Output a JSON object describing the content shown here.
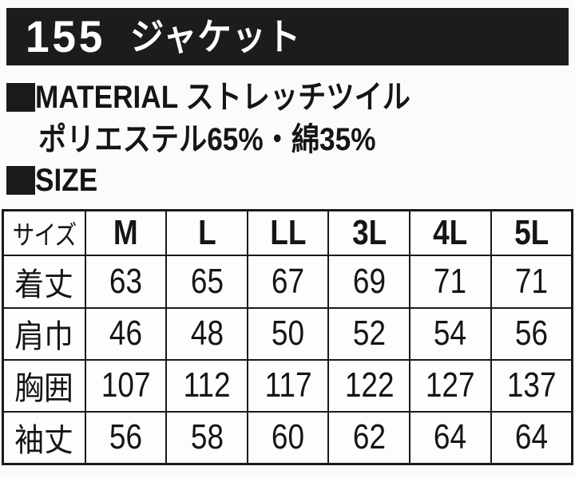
{
  "header": {
    "product_number": "155",
    "product_name": "ジャケット"
  },
  "material": {
    "heading": "MATERIAL",
    "fabric": "ストレッチツイル",
    "heading_line": "MATERIAL ストレッチツイル",
    "composition": "ポリエステル65%・綿35%"
  },
  "size_heading": "SIZE",
  "size_table": {
    "header": [
      "サイズ",
      "M",
      "L",
      "LL",
      "3L",
      "4L",
      "5L"
    ],
    "rows": [
      {
        "label": "着丈",
        "values": [
          "63",
          "65",
          "67",
          "69",
          "71",
          "71"
        ]
      },
      {
        "label": "肩巾",
        "values": [
          "46",
          "48",
          "50",
          "52",
          "54",
          "56"
        ]
      },
      {
        "label": "胸囲",
        "values": [
          "107",
          "112",
          "117",
          "122",
          "127",
          "137"
        ]
      },
      {
        "label": "袖丈",
        "values": [
          "56",
          "58",
          "60",
          "62",
          "64",
          "64"
        ]
      }
    ]
  },
  "colors": {
    "bar_background": "#1c1c1c",
    "bar_text": "#ffffff",
    "text": "#151515",
    "table_border": "#1a1a1a",
    "page_background": "#fbfbfa"
  }
}
